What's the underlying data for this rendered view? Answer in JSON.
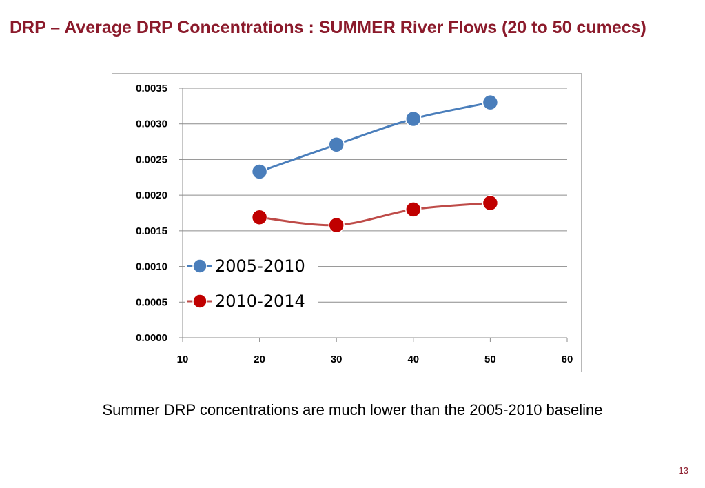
{
  "slide": {
    "title": "DRP – Average DRP Concentrations : SUMMER River Flows (20 to 50 cumecs)",
    "caption": "Summer DRP concentrations are much lower than the 2005-2010 baseline",
    "page_number": "13"
  },
  "chart_data": {
    "type": "line",
    "title": "",
    "xlabel": "",
    "ylabel": "",
    "xlim": [
      10,
      60
    ],
    "ylim": [
      0,
      0.0035
    ],
    "x_ticks": [
      "10",
      "20",
      "30",
      "40",
      "50",
      "60"
    ],
    "y_ticks": [
      "0.0000",
      "0.0005",
      "0.0010",
      "0.0015",
      "0.0020",
      "0.0025",
      "0.0030",
      "0.0035"
    ],
    "grid": "horizontal",
    "legend_position": "left-bottom-inside",
    "series": [
      {
        "name": "2005-2010",
        "color": "#4a7ebb",
        "marker_color": "#4a7ebb",
        "x": [
          20,
          30,
          40,
          50
        ],
        "values": [
          0.00233,
          0.00271,
          0.00307,
          0.0033
        ]
      },
      {
        "name": "2010-2014",
        "color": "#be4b48",
        "marker_color": "#c00000",
        "x": [
          20,
          30,
          40,
          50
        ],
        "values": [
          0.00169,
          0.00158,
          0.0018,
          0.00189
        ]
      }
    ]
  }
}
